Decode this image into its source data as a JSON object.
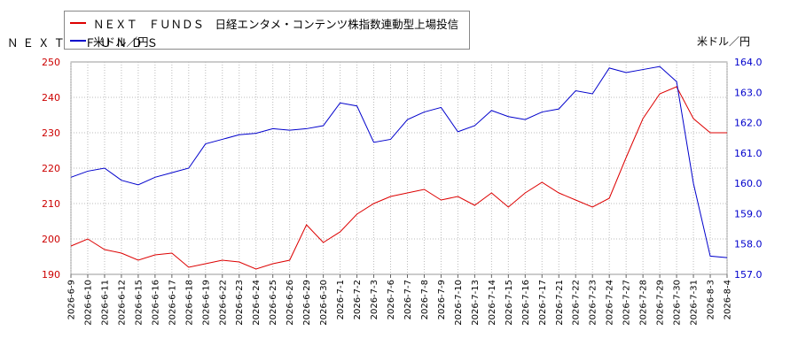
{
  "legend": {
    "series1": "ＮＥＸＴ　ＦＵＮＤＳ　日経エンタメ・コンテンツ株指数連動型上場投信",
    "series2": "米ドル／円"
  },
  "left_axis_unit": "ＮＥＸＴ　ＦＵＮＤＳ",
  "right_axis_unit": "米ドル／円",
  "colors": {
    "series1": "#dd0000",
    "series2": "#0000cc",
    "left_axis": "#cc0000",
    "right_axis": "#0000cc",
    "grid": "#bbbbbb"
  },
  "chart_data": {
    "type": "line",
    "x": [
      "2026-6-9",
      "2026-6-10",
      "2026-6-11",
      "2026-6-12",
      "2026-6-15",
      "2026-6-16",
      "2026-6-17",
      "2026-6-18",
      "2026-6-19",
      "2026-6-22",
      "2026-6-23",
      "2026-6-24",
      "2026-6-25",
      "2026-6-26",
      "2026-6-29",
      "2026-6-30",
      "2026-7-1",
      "2026-7-2",
      "2026-7-3",
      "2026-7-6",
      "2026-7-7",
      "2026-7-8",
      "2026-7-9",
      "2026-7-10",
      "2026-7-13",
      "2026-7-14",
      "2026-7-15",
      "2026-7-16",
      "2026-7-17",
      "2026-7-21",
      "2026-7-22",
      "2026-7-23",
      "2026-7-24",
      "2026-7-27",
      "2026-7-28",
      "2026-7-29",
      "2026-7-30",
      "2026-7-31",
      "2026-8-3",
      "2026-8-4"
    ],
    "series": [
      {
        "name": "ＮＥＸＴ　ＦＵＮＤＳ　日経エンタメ・コンテンツ株指数連動型上場投信",
        "axis": "left",
        "values": [
          198,
          200,
          197,
          196,
          194,
          195.5,
          196,
          192,
          193,
          194,
          193.5,
          191.5,
          193,
          194,
          204,
          199,
          202,
          207,
          210,
          212,
          213,
          214,
          211,
          212,
          209.5,
          213,
          209,
          213,
          216,
          213,
          211,
          209,
          211.5,
          223,
          234,
          241,
          243,
          234,
          230,
          230
        ]
      },
      {
        "name": "米ドル／円",
        "axis": "right",
        "values": [
          160.2,
          160.4,
          160.5,
          160.1,
          159.95,
          160.2,
          160.35,
          160.5,
          161.3,
          161.45,
          161.6,
          161.65,
          161.8,
          161.75,
          161.8,
          161.9,
          162.65,
          162.55,
          161.35,
          161.45,
          162.1,
          162.35,
          162.5,
          161.7,
          161.9,
          162.4,
          162.2,
          162.1,
          162.35,
          162.45,
          163.05,
          162.95,
          163.8,
          163.65,
          163.75,
          163.85,
          163.35,
          160.0,
          157.6,
          157.55
        ]
      }
    ],
    "y_left": {
      "min": 190,
      "max": 250,
      "ticks": [
        "190",
        "200",
        "210",
        "220",
        "230",
        "240",
        "250"
      ]
    },
    "y_right": {
      "min": 157.0,
      "max": 164.0,
      "ticks": [
        "157.0",
        "158.0",
        "159.0",
        "160.0",
        "161.0",
        "162.0",
        "163.0",
        "164.0"
      ]
    },
    "grid": true,
    "legend_position": "top-left"
  }
}
